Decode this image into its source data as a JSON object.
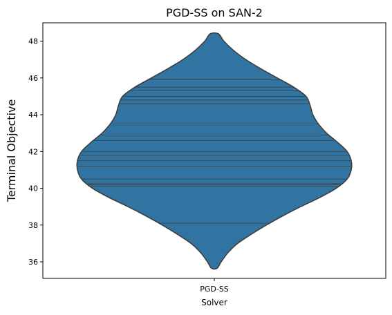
{
  "chart_data": {
    "type": "violin",
    "title": "PGD-SS on SAN-2",
    "xlabel": "Solver",
    "ylabel": "Terminal Objective",
    "categories": [
      "PGD-SS"
    ],
    "ylim": [
      35.1,
      49.0
    ],
    "yticks": [
      36,
      38,
      40,
      42,
      44,
      46,
      48
    ],
    "grid": false,
    "fill_color": "#3274a1",
    "edge_color": "#3d3d3d",
    "observations": [
      38.1,
      40.1,
      40.2,
      40.25,
      40.5,
      41.2,
      41.5,
      41.8,
      42.0,
      42.6,
      42.9,
      43.5,
      44.6,
      44.8,
      45.0,
      45.3,
      45.5,
      45.9
    ],
    "density_profile": [
      {
        "y": 35.65,
        "w": 0.02
      },
      {
        "y": 36.0,
        "w": 0.05
      },
      {
        "y": 36.5,
        "w": 0.1
      },
      {
        "y": 37.0,
        "w": 0.17
      },
      {
        "y": 37.5,
        "w": 0.27
      },
      {
        "y": 38.0,
        "w": 0.38
      },
      {
        "y": 38.5,
        "w": 0.5
      },
      {
        "y": 39.0,
        "w": 0.63
      },
      {
        "y": 39.5,
        "w": 0.77
      },
      {
        "y": 40.0,
        "w": 0.89
      },
      {
        "y": 40.5,
        "w": 0.97
      },
      {
        "y": 41.0,
        "w": 1.0
      },
      {
        "y": 41.5,
        "w": 1.0
      },
      {
        "y": 42.0,
        "w": 0.97
      },
      {
        "y": 42.5,
        "w": 0.9
      },
      {
        "y": 43.0,
        "w": 0.82
      },
      {
        "y": 43.5,
        "w": 0.76
      },
      {
        "y": 44.0,
        "w": 0.72
      },
      {
        "y": 44.5,
        "w": 0.7
      },
      {
        "y": 45.0,
        "w": 0.67
      },
      {
        "y": 45.5,
        "w": 0.58
      },
      {
        "y": 46.0,
        "w": 0.46
      },
      {
        "y": 46.5,
        "w": 0.34
      },
      {
        "y": 47.0,
        "w": 0.23
      },
      {
        "y": 47.5,
        "w": 0.14
      },
      {
        "y": 48.0,
        "w": 0.07
      },
      {
        "y": 48.4,
        "w": 0.03
      }
    ]
  }
}
